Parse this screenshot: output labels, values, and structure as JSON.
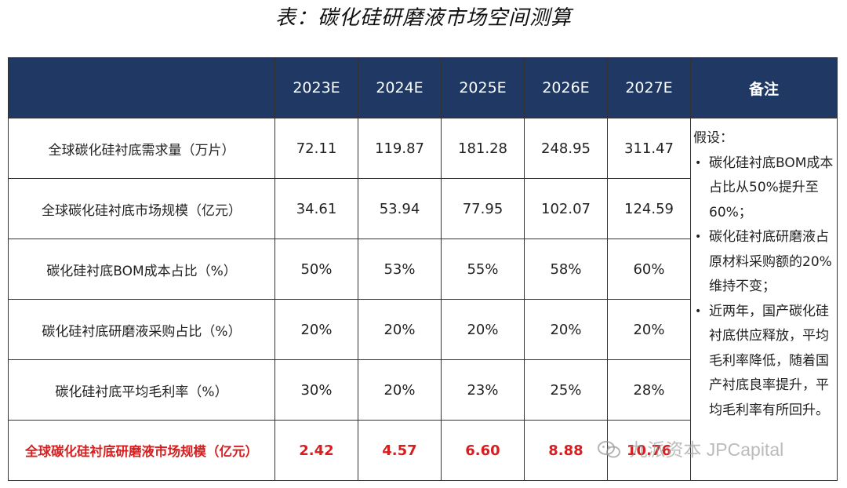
{
  "title": "表：碳化硅研磨液市场空间测算",
  "table": {
    "header": {
      "label": "",
      "years": [
        "2023E",
        "2024E",
        "2025E",
        "2026E",
        "2027E"
      ],
      "notes": "备注"
    },
    "rows": [
      {
        "label": "全球碳化硅衬底需求量（万片）",
        "values": [
          "72.11",
          "119.87",
          "181.28",
          "248.95",
          "311.47"
        ]
      },
      {
        "label": "全球碳化硅衬底市场规模（亿元）",
        "values": [
          "34.61",
          "53.94",
          "77.95",
          "102.07",
          "124.59"
        ]
      },
      {
        "label": "碳化硅衬底BOM成本占比（%）",
        "values": [
          "50%",
          "53%",
          "55%",
          "58%",
          "60%"
        ]
      },
      {
        "label": "碳化硅衬底研磨液采购占比（%）",
        "values": [
          "20%",
          "20%",
          "20%",
          "20%",
          "20%"
        ]
      },
      {
        "label": "碳化硅衬底平均毛利率（%）",
        "values": [
          "30%",
          "20%",
          "23%",
          "25%",
          "28%"
        ]
      },
      {
        "label": "全球碳化硅衬底研磨液市场规模（亿元）",
        "values": [
          "2.42",
          "4.57",
          "6.60",
          "8.88",
          "10.76"
        ],
        "highlight": true
      }
    ],
    "notes": {
      "intro": "假设：",
      "items": [
        "碳化硅衬底BOM成本占比从50%提升至60%；",
        "碳化硅衬底研磨液占原材料采购额的20%维持不变；",
        "近两年，国产碳化硅衬底供应释放，平均毛利率降低，随着国产衬底良率提升，平均毛利率有所回升。"
      ]
    }
  },
  "watermark": "九派资本 JPCapital",
  "colors": {
    "header_bg": "#1f3864",
    "highlight": "#d81e1e"
  }
}
